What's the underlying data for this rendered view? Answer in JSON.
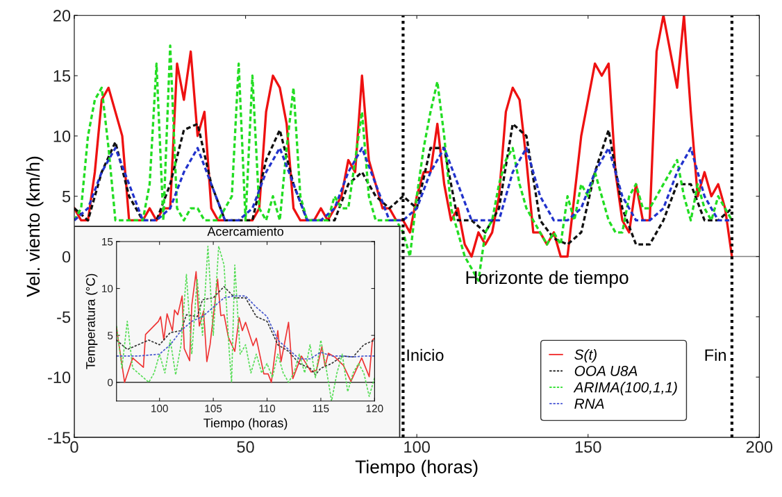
{
  "chart_data": [
    {
      "type": "line",
      "xlabel": "Tiempo (horas)",
      "ylabel": "Vel. viento (km/h)",
      "xlim": [
        0,
        200
      ],
      "ylim": [
        -15,
        20
      ],
      "xticks": [
        0,
        50,
        100,
        150,
        200
      ],
      "yticks": [
        -15,
        -10,
        -5,
        0,
        5,
        10,
        15,
        20
      ],
      "grid": false,
      "legend": "bottom right",
      "marker": "none",
      "series": [
        {
          "name": "S(t)",
          "color": "#ee1111",
          "line_style": "solid",
          "x": [
            0,
            2,
            4,
            6,
            8,
            10,
            12,
            14,
            16,
            18,
            20,
            22,
            24,
            26,
            28,
            30,
            32,
            34,
            36,
            38,
            40,
            42,
            44,
            46,
            48,
            50,
            52,
            54,
            56,
            58,
            60,
            62,
            64,
            66,
            68,
            70,
            72,
            74,
            76,
            78,
            80,
            82,
            84,
            86,
            88,
            90,
            92,
            94,
            96,
            98,
            100,
            102,
            104,
            106,
            108,
            110,
            112,
            114,
            116,
            118,
            120,
            122,
            124,
            126,
            128,
            130,
            132,
            134,
            136,
            138,
            140,
            142,
            144,
            146,
            148,
            150,
            152,
            154,
            156,
            158,
            160,
            162,
            164,
            166,
            168,
            170,
            172,
            174,
            176,
            178,
            180,
            182,
            184,
            186,
            188,
            190,
            192
          ],
          "values": [
            4,
            3,
            3,
            7,
            13,
            14,
            12,
            10,
            3,
            3,
            3,
            4,
            3,
            4,
            4,
            16,
            13,
            17,
            10,
            12,
            4,
            3,
            3,
            null,
            null,
            3,
            3,
            4,
            12,
            15,
            14,
            11,
            4,
            3,
            3,
            3,
            4,
            3,
            4,
            5,
            8,
            7,
            15,
            8,
            6,
            4,
            4,
            3,
            3,
            2,
            5,
            7,
            7,
            11,
            6,
            3,
            4,
            1,
            0,
            2,
            1,
            2,
            5,
            12,
            14,
            13,
            8,
            2,
            2,
            1,
            2,
            0,
            0,
            5,
            10,
            13,
            16,
            15,
            16,
            7,
            3,
            2,
            6,
            3,
            3,
            17,
            20,
            17,
            14,
            20,
            12,
            5,
            7,
            5,
            6,
            4,
            0
          ]
        },
        {
          "name": "OOA U8A",
          "color": "#111111",
          "line_style": "dashed",
          "x": [
            0,
            4,
            8,
            12,
            16,
            20,
            24,
            28,
            32,
            36,
            40,
            44,
            48,
            52,
            56,
            60,
            64,
            68,
            72,
            76,
            80,
            84,
            88,
            92,
            96,
            100,
            104,
            108,
            112,
            116,
            120,
            124,
            128,
            132,
            136,
            140,
            144,
            148,
            152,
            156,
            160,
            164,
            168,
            172,
            176,
            180,
            184,
            188,
            192
          ],
          "values": [
            4,
            3,
            7,
            9.5,
            5,
            3,
            3,
            6,
            10.5,
            11,
            6,
            3,
            3,
            3,
            8,
            10.5,
            6,
            3,
            3,
            3,
            6,
            7,
            5,
            4,
            5,
            4,
            9,
            9,
            3,
            3,
            2,
            4,
            11,
            10,
            3,
            1.5,
            1,
            2,
            7,
            10.5,
            4,
            1,
            1,
            3,
            6,
            6,
            3,
            3,
            4
          ]
        },
        {
          "name": "ARIMA(100,1,1)",
          "color": "#22dd22",
          "line_style": "dashed",
          "x": [
            0,
            2,
            4,
            6,
            8,
            10,
            12,
            14,
            16,
            18,
            20,
            22,
            24,
            26,
            28,
            30,
            32,
            34,
            36,
            38,
            40,
            42,
            44,
            46,
            48,
            50,
            52,
            54,
            56,
            58,
            60,
            62,
            64,
            66,
            68,
            70,
            72,
            74,
            76,
            78,
            80,
            82,
            84,
            86,
            88,
            90,
            92,
            94,
            96,
            98,
            100,
            102,
            104,
            106,
            108,
            110,
            112,
            114,
            116,
            118,
            120,
            122,
            124,
            126,
            128,
            130,
            132,
            134,
            136,
            138,
            140,
            142,
            144,
            146,
            148,
            150,
            152,
            154,
            156,
            158,
            160,
            162,
            164,
            166,
            168,
            170,
            172,
            174,
            176,
            178,
            180,
            182,
            184,
            186,
            188,
            190,
            192
          ],
          "values": [
            3,
            4,
            10,
            13,
            14,
            9,
            3,
            3,
            3,
            3,
            3,
            6,
            16,
            3,
            17.5,
            4,
            3,
            4,
            4,
            3,
            3,
            3,
            4,
            5,
            16,
            3,
            15,
            4,
            3,
            5,
            3,
            9,
            14,
            5,
            3,
            3,
            3,
            3,
            5,
            4,
            4,
            8,
            12,
            5,
            3,
            3,
            3,
            3,
            2,
            0,
            5,
            9,
            12,
            14.5,
            10,
            4,
            2,
            0,
            -1,
            -2,
            2,
            3,
            6,
            8,
            9,
            6,
            4,
            3,
            2,
            1,
            2,
            1,
            5,
            3,
            6,
            5,
            7,
            5,
            3,
            2,
            2,
            5,
            6,
            4,
            4,
            5,
            6,
            7,
            8,
            5,
            3,
            6,
            4,
            3,
            5,
            4,
            3
          ]
        },
        {
          "name": "RNA",
          "color": "#2233cc",
          "line_style": "dashed",
          "x": [
            0,
            4,
            8,
            12,
            16,
            20,
            24,
            28,
            32,
            36,
            40,
            44,
            48,
            52,
            56,
            60,
            64,
            68,
            72,
            76,
            80,
            84,
            88,
            92,
            96,
            100,
            104,
            108,
            112,
            116,
            120,
            124,
            128,
            132,
            136,
            140,
            144,
            148,
            152,
            156,
            160,
            164,
            168,
            172,
            176,
            180,
            184,
            188,
            192
          ],
          "values": [
            3,
            4,
            7,
            9,
            6,
            3,
            3,
            4,
            7,
            9,
            6,
            3,
            3,
            4,
            7,
            9,
            6,
            3,
            3,
            4,
            7,
            9,
            6,
            3,
            3,
            4,
            7,
            9,
            6,
            3,
            3,
            3,
            7,
            9,
            5,
            3,
            3,
            4,
            7,
            9,
            5,
            3,
            3,
            4,
            7,
            9,
            5,
            3,
            3
          ]
        }
      ],
      "ref_lines": [
        {
          "axis": "x",
          "value": 96,
          "label": "Inicio",
          "color": "#000000",
          "line_style": "dotted"
        },
        {
          "axis": "x",
          "value": 192,
          "label": "Fin",
          "color": "#000000",
          "line_style": "dotted"
        },
        {
          "axis": "y",
          "value": 0,
          "color": "#808080",
          "line_style": "solid"
        }
      ],
      "annotations": [
        "Horizonte de tiempo"
      ]
    },
    {
      "type": "line",
      "title": "Acercamiento",
      "xlabel": "Tiempo (horas)",
      "ylabel": "Temperatura (°C)",
      "xlim": [
        96,
        120
      ],
      "ylim": [
        -2,
        15
      ],
      "xticks": [
        100,
        105,
        110,
        115,
        120
      ],
      "yticks": [
        0,
        5,
        10,
        15
      ],
      "grid": false,
      "marker": "none",
      "series": [
        {
          "color": "#ee3333",
          "line_style": "solid",
          "x": [
            96,
            96.75,
            97.5,
            98.5,
            98.7,
            99.9,
            100.1,
            100.4,
            100.7,
            101.2,
            101.4,
            101.7,
            102.1,
            102.3,
            102.8,
            103,
            103.4,
            103.7,
            104.1,
            104.4,
            104.7,
            105.4,
            105.7,
            106,
            106.4,
            107,
            107.4,
            107.7,
            108,
            108.7,
            109,
            109.7,
            110.1,
            110.4,
            111,
            111.3,
            112,
            112.4,
            113.2,
            114.1,
            114.6,
            115.1,
            115.4,
            115.7,
            116.3,
            117.1,
            117.8,
            118.2,
            118.8,
            119.5,
            119.8,
            120
          ],
          "values": [
            5.8,
            0,
            2.6,
            1.6,
            5.1,
            6.5,
            7,
            4.5,
            7.3,
            5.5,
            7.7,
            7.2,
            9.2,
            3.6,
            2.3,
            8.2,
            11.8,
            6,
            7.6,
            2.2,
            4,
            11,
            7.1,
            7.2,
            4.8,
            3.3,
            6.9,
            5.5,
            6.4,
            3.9,
            4.7,
            0.9,
            0.9,
            0,
            5.5,
            2.2,
            6.4,
            0.4,
            2.8,
            1.1,
            1.3,
            3.8,
            1.7,
            3.1,
            2.7,
            1.8,
            0.1,
            1.1,
            2.6,
            0.6,
            4.5,
            4.7
          ]
        },
        {
          "color": "#333333",
          "line_style": "dashed",
          "x": [
            96,
            97,
            98,
            99,
            100,
            101,
            102,
            102.5,
            103.5,
            104,
            105,
            106,
            107,
            108,
            109,
            110,
            111,
            112,
            113,
            114,
            114.5,
            115,
            116,
            117,
            118,
            119,
            120
          ],
          "values": [
            4.5,
            3.5,
            4,
            4.5,
            4,
            5.3,
            5.5,
            7.2,
            7,
            8.8,
            9,
            10.2,
            9,
            9,
            7,
            6.5,
            4,
            3.3,
            2,
            1.5,
            0.8,
            1.5,
            2,
            2.8,
            2.7,
            4,
            4.5
          ]
        },
        {
          "color": "#55dd55",
          "line_style": "dashed",
          "x": [
            96,
            96.5,
            97,
            97.5,
            98,
            98.5,
            99,
            99.5,
            100,
            100.5,
            101,
            101.5,
            102,
            102.5,
            103,
            103.5,
            104,
            104.5,
            105,
            105.5,
            106,
            106.5,
            106.7,
            107,
            107.5,
            108,
            108.5,
            109,
            109.5,
            110,
            110.5,
            111,
            111.5,
            112,
            112.5,
            113,
            113.5,
            114,
            114.5,
            115,
            115.5,
            116,
            116.5,
            117,
            117.5,
            118,
            118.5,
            119,
            119.5,
            120
          ],
          "values": [
            6,
            1.5,
            6.5,
            1.5,
            1,
            0.5,
            0,
            1,
            3,
            1,
            4.5,
            0.8,
            4,
            11.5,
            3,
            11,
            5,
            14.5,
            5,
            14.5,
            12.5,
            3,
            0,
            12.5,
            3,
            4,
            1,
            3,
            1,
            2,
            0.5,
            3,
            1,
            0,
            1,
            3,
            1,
            4,
            0.5,
            4.5,
            1.5,
            -2,
            1,
            3,
            -1,
            1,
            2,
            1,
            -1.5,
            0.5
          ]
        },
        {
          "color": "#4455cc",
          "line_style": "dashed",
          "x": [
            96,
            98,
            100,
            101,
            102,
            103,
            104,
            105,
            106,
            107,
            108,
            109,
            110,
            111,
            112,
            113,
            114,
            115,
            116,
            117,
            118,
            119,
            120
          ],
          "values": [
            2.8,
            2.8,
            3,
            4,
            5.5,
            6.5,
            7,
            8,
            9,
            9.2,
            9.2,
            8,
            7,
            4.5,
            3.5,
            2.5,
            2.5,
            3.2,
            2.8,
            2.8,
            2.7,
            2.8,
            2.8
          ]
        }
      ],
      "ref_lines": [
        {
          "axis": "y",
          "value": 0,
          "color": "#333333",
          "line_style": "solid"
        }
      ]
    }
  ]
}
